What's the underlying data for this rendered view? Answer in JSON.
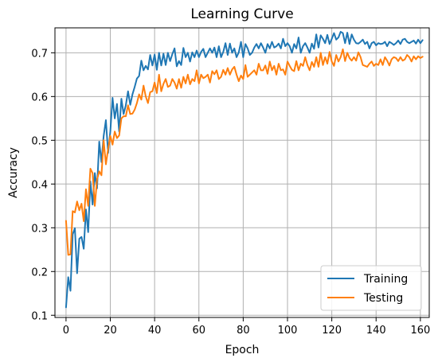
{
  "chart_data": {
    "type": "line",
    "title": "Learning Curve",
    "xlabel": "Epoch",
    "ylabel": "Accuracy",
    "xlim": [
      -5,
      164
    ],
    "ylim": [
      0.095,
      0.757
    ],
    "xticks": [
      0,
      20,
      40,
      60,
      80,
      100,
      120,
      140,
      160
    ],
    "yticks": [
      0.1,
      0.2,
      0.3,
      0.4,
      0.5,
      0.6,
      0.7
    ],
    "ytick_labels": [
      "0.1",
      "0.2",
      "0.3",
      "0.4",
      "0.5",
      "0.6",
      "0.7"
    ],
    "grid": true,
    "legend_position": "lower-right",
    "series": [
      {
        "name": "Training",
        "color": "#1f77b4",
        "values": [
          0.118,
          0.187,
          0.156,
          0.285,
          0.299,
          0.196,
          0.275,
          0.279,
          0.252,
          0.342,
          0.29,
          0.406,
          0.353,
          0.425,
          0.39,
          0.497,
          0.45,
          0.51,
          0.546,
          0.471,
          0.52,
          0.597,
          0.55,
          0.583,
          0.52,
          0.595,
          0.56,
          0.58,
          0.612,
          0.581,
          0.605,
          0.622,
          0.641,
          0.647,
          0.682,
          0.66,
          0.67,
          0.662,
          0.695,
          0.671,
          0.696,
          0.661,
          0.7,
          0.671,
          0.698,
          0.672,
          0.7,
          0.681,
          0.697,
          0.71,
          0.669,
          0.681,
          0.672,
          0.711,
          0.69,
          0.7,
          0.68,
          0.701,
          0.69,
          0.705,
          0.69,
          0.702,
          0.709,
          0.69,
          0.7,
          0.71,
          0.7,
          0.712,
          0.69,
          0.715,
          0.69,
          0.702,
          0.722,
          0.695,
          0.721,
          0.7,
          0.71,
          0.69,
          0.701,
          0.725,
          0.69,
          0.72,
          0.71,
          0.695,
          0.7,
          0.712,
          0.72,
          0.71,
          0.722,
          0.712,
          0.7,
          0.72,
          0.71,
          0.725,
          0.712,
          0.715,
          0.721,
          0.71,
          0.732,
          0.715,
          0.722,
          0.715,
          0.7,
          0.72,
          0.71,
          0.735,
          0.7,
          0.715,
          0.722,
          0.712,
          0.7,
          0.721,
          0.709,
          0.742,
          0.712,
          0.74,
          0.732,
          0.722,
          0.741,
          0.72,
          0.732,
          0.745,
          0.73,
          0.735,
          0.748,
          0.745,
          0.722,
          0.746,
          0.72,
          0.742,
          0.73,
          0.722,
          0.721,
          0.725,
          0.73,
          0.72,
          0.725,
          0.71,
          0.722,
          0.725,
          0.717,
          0.722,
          0.72,
          0.721,
          0.725,
          0.715,
          0.725,
          0.722,
          0.718,
          0.722,
          0.728,
          0.72,
          0.73,
          0.732,
          0.725,
          0.722,
          0.725,
          0.728,
          0.721,
          0.73,
          0.722,
          0.729
        ]
      },
      {
        "name": "Testing",
        "color": "#ff7f0e",
        "values": [
          0.316,
          0.238,
          0.239,
          0.338,
          0.335,
          0.36,
          0.34,
          0.355,
          0.315,
          0.388,
          0.35,
          0.435,
          0.425,
          0.35,
          0.41,
          0.429,
          0.42,
          0.5,
          0.445,
          0.48,
          0.51,
          0.49,
          0.52,
          0.505,
          0.511,
          0.55,
          0.555,
          0.555,
          0.58,
          0.56,
          0.561,
          0.57,
          0.585,
          0.605,
          0.593,
          0.625,
          0.6,
          0.585,
          0.61,
          0.612,
          0.632,
          0.608,
          0.65,
          0.612,
          0.629,
          0.64,
          0.622,
          0.625,
          0.64,
          0.632,
          0.618,
          0.64,
          0.62,
          0.645,
          0.63,
          0.65,
          0.628,
          0.64,
          0.635,
          0.66,
          0.63,
          0.65,
          0.642,
          0.645,
          0.65,
          0.632,
          0.658,
          0.651,
          0.66,
          0.64,
          0.645,
          0.661,
          0.65,
          0.665,
          0.65,
          0.662,
          0.668,
          0.65,
          0.635,
          0.648,
          0.64,
          0.672,
          0.645,
          0.65,
          0.655,
          0.66,
          0.65,
          0.675,
          0.66,
          0.66,
          0.671,
          0.652,
          0.68,
          0.66,
          0.67,
          0.65,
          0.675,
          0.66,
          0.662,
          0.65,
          0.68,
          0.67,
          0.661,
          0.658,
          0.681,
          0.66,
          0.675,
          0.67,
          0.69,
          0.672,
          0.66,
          0.679,
          0.668,
          0.69,
          0.668,
          0.7,
          0.672,
          0.69,
          0.675,
          0.702,
          0.68,
          0.67,
          0.695,
          0.68,
          0.69,
          0.708,
          0.681,
          0.7,
          0.688,
          0.682,
          0.69,
          0.682,
          0.701,
          0.69,
          0.672,
          0.67,
          0.668,
          0.675,
          0.68,
          0.67,
          0.675,
          0.672,
          0.685,
          0.672,
          0.69,
          0.682,
          0.671,
          0.685,
          0.69,
          0.688,
          0.681,
          0.69,
          0.682,
          0.685,
          0.695,
          0.69,
          0.68,
          0.692,
          0.685,
          0.692,
          0.688,
          0.691
        ]
      }
    ]
  }
}
